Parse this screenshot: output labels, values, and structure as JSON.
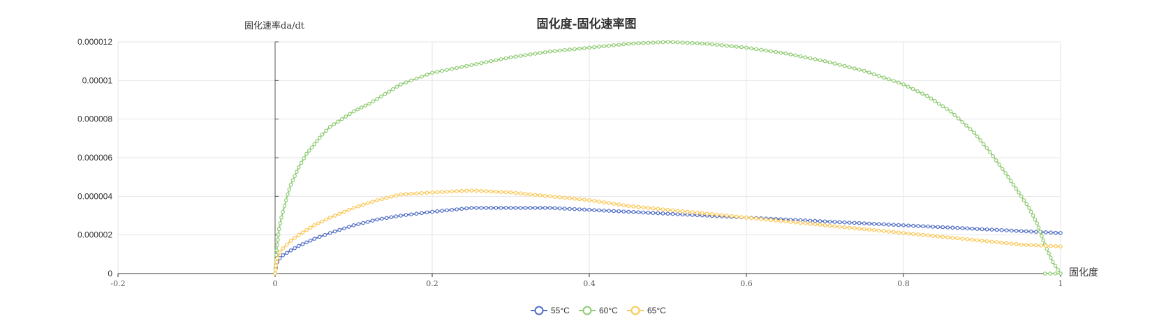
{
  "chart_data": {
    "type": "line",
    "title": "固化度-固化速率图",
    "xlabel": "固化度",
    "ylabel": "固化速率da/dt",
    "xlim": [
      -0.2,
      1
    ],
    "ylim": [
      0,
      1.2e-05
    ],
    "x_ticks": [
      "-0.2",
      "0",
      "0.2",
      "0.4",
      "0.6",
      "0.8",
      "1"
    ],
    "y_ticks": [
      "0",
      "0.000002",
      "0.000004",
      "0.000006",
      "0.000008",
      "0.00001",
      "0.000012"
    ],
    "grid": true,
    "legend_position": "bottom-center",
    "series": [
      {
        "name": "55°C",
        "color": "#5470c6",
        "points": [
          [
            0,
            0
          ],
          [
            0.001,
            3e-07
          ],
          [
            0.003,
            6e-07
          ],
          [
            0.006,
            8e-07
          ],
          [
            0.01,
            9.5e-07
          ],
          [
            0.02,
            1.2e-06
          ],
          [
            0.03,
            1.43e-06
          ],
          [
            0.05,
            1.8e-06
          ],
          [
            0.07,
            2.1e-06
          ],
          [
            0.1,
            2.5e-06
          ],
          [
            0.13,
            2.8e-06
          ],
          [
            0.16,
            3e-06
          ],
          [
            0.2,
            3.2e-06
          ],
          [
            0.25,
            3.4e-06
          ],
          [
            0.3,
            3.4e-06
          ],
          [
            0.35,
            3.4e-06
          ],
          [
            0.4,
            3.3e-06
          ],
          [
            0.45,
            3.2e-06
          ],
          [
            0.5,
            3.1e-06
          ],
          [
            0.55,
            3e-06
          ],
          [
            0.6,
            2.9e-06
          ],
          [
            0.65,
            2.8e-06
          ],
          [
            0.7,
            2.7e-06
          ],
          [
            0.75,
            2.6e-06
          ],
          [
            0.8,
            2.5e-06
          ],
          [
            0.85,
            2.4e-06
          ],
          [
            0.9,
            2.3e-06
          ],
          [
            0.95,
            2.2e-06
          ],
          [
            1,
            2.1e-06
          ]
        ]
      },
      {
        "name": "60°C",
        "color": "#91cc75",
        "points": [
          [
            0,
            0
          ],
          [
            0.002,
            1.2e-06
          ],
          [
            0.005,
            2.3e-06
          ],
          [
            0.008,
            2.9e-06
          ],
          [
            0.012,
            3.5e-06
          ],
          [
            0.016,
            4.1e-06
          ],
          [
            0.02,
            4.6e-06
          ],
          [
            0.03,
            5.5e-06
          ],
          [
            0.04,
            6.2e-06
          ],
          [
            0.05,
            6.7e-06
          ],
          [
            0.06,
            7.2e-06
          ],
          [
            0.07,
            7.6e-06
          ],
          [
            0.085,
            8e-06
          ],
          [
            0.1,
            8.4e-06
          ],
          [
            0.12,
            8.8e-06
          ],
          [
            0.14,
            9.3e-06
          ],
          [
            0.16,
            9.8e-06
          ],
          [
            0.18,
            1.01e-05
          ],
          [
            0.2,
            1.04e-05
          ],
          [
            0.25,
            1.08e-05
          ],
          [
            0.3,
            1.12e-05
          ],
          [
            0.35,
            1.15e-05
          ],
          [
            0.4,
            1.17e-05
          ],
          [
            0.45,
            1.19e-05
          ],
          [
            0.5,
            1.2e-05
          ],
          [
            0.55,
            1.19e-05
          ],
          [
            0.6,
            1.17e-05
          ],
          [
            0.65,
            1.14e-05
          ],
          [
            0.7,
            1.1e-05
          ],
          [
            0.75,
            1.05e-05
          ],
          [
            0.8,
            9.8e-06
          ],
          [
            0.83,
            9.2e-06
          ],
          [
            0.86,
            8.4e-06
          ],
          [
            0.89,
            7.3e-06
          ],
          [
            0.91,
            6.3e-06
          ],
          [
            0.93,
            5.2e-06
          ],
          [
            0.95,
            4e-06
          ],
          [
            0.96,
            3.4e-06
          ],
          [
            0.97,
            2.6e-06
          ],
          [
            0.98,
            1.5e-06
          ],
          [
            0.99,
            6e-07
          ],
          [
            1,
            0
          ],
          [
            0.98,
            0
          ]
        ]
      },
      {
        "name": "65°C",
        "color": "#fac858",
        "points": [
          [
            0,
            0
          ],
          [
            0.001,
            4e-07
          ],
          [
            0.003,
            8e-07
          ],
          [
            0.006,
            1.1e-06
          ],
          [
            0.01,
            1.3e-06
          ],
          [
            0.02,
            1.7e-06
          ],
          [
            0.03,
            2e-06
          ],
          [
            0.05,
            2.5e-06
          ],
          [
            0.07,
            2.9e-06
          ],
          [
            0.1,
            3.4e-06
          ],
          [
            0.13,
            3.8e-06
          ],
          [
            0.16,
            4.1e-06
          ],
          [
            0.2,
            4.2e-06
          ],
          [
            0.25,
            4.3e-06
          ],
          [
            0.3,
            4.2e-06
          ],
          [
            0.35,
            4e-06
          ],
          [
            0.4,
            3.8e-06
          ],
          [
            0.45,
            3.5e-06
          ],
          [
            0.5,
            3.3e-06
          ],
          [
            0.55,
            3.1e-06
          ],
          [
            0.6,
            2.9e-06
          ],
          [
            0.65,
            2.7e-06
          ],
          [
            0.7,
            2.5e-06
          ],
          [
            0.75,
            2.3e-06
          ],
          [
            0.8,
            2.1e-06
          ],
          [
            0.85,
            1.9e-06
          ],
          [
            0.9,
            1.7e-06
          ],
          [
            0.95,
            1.5e-06
          ],
          [
            1,
            1.4e-06
          ]
        ]
      }
    ]
  }
}
